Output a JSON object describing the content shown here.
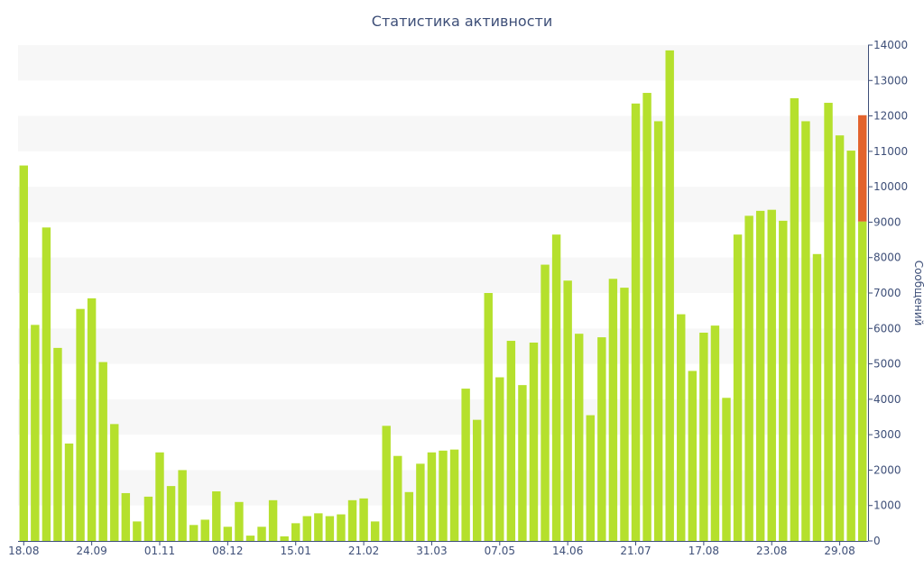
{
  "chart_data": {
    "type": "bar",
    "title": "Статистика активности",
    "ylabel": "Сообщений",
    "xlabel": "",
    "ylim": [
      0,
      14000
    ],
    "yticks": [
      0,
      1000,
      2000,
      3000,
      4000,
      5000,
      6000,
      7000,
      8000,
      9000,
      10000,
      11000,
      12000,
      13000,
      14000
    ],
    "grid": "alternating horizontal bands",
    "x_tick_labels": [
      {
        "label": "18.08",
        "index": 0
      },
      {
        "label": "24.09",
        "index": 6
      },
      {
        "label": "01.11",
        "index": 12
      },
      {
        "label": "08.12",
        "index": 18
      },
      {
        "label": "15.01",
        "index": 24
      },
      {
        "label": "21.02",
        "index": 30
      },
      {
        "label": "31.03",
        "index": 36
      },
      {
        "label": "07.05",
        "index": 42
      },
      {
        "label": "14.06",
        "index": 48
      },
      {
        "label": "21.07",
        "index": 54
      },
      {
        "label": "17.08",
        "index": 60
      },
      {
        "label": "23.08",
        "index": 66
      },
      {
        "label": "29.08",
        "index": 72
      }
    ],
    "series": [
      {
        "color": "#b5e02d",
        "values": [
          10600,
          6100,
          8850,
          5450,
          2750,
          6550,
          6850,
          5050,
          3300,
          1350,
          550,
          1250,
          2500,
          1550,
          2000,
          450,
          600,
          1400,
          400,
          1100,
          150,
          400,
          1150,
          130,
          500,
          700,
          780,
          700,
          750,
          1150,
          1200,
          550,
          3250,
          2400,
          1380,
          2180,
          2500,
          2550,
          2580,
          4300,
          3420,
          7000,
          4620,
          5650,
          4400,
          5600,
          7800,
          8650,
          7350,
          5850,
          3550,
          5750,
          7400,
          7150,
          12350,
          12650,
          11850,
          13850,
          6400,
          4800,
          5880,
          6080,
          4040,
          8650,
          9180,
          9320,
          9350,
          9040,
          12500,
          11850,
          8100,
          12370,
          11450,
          11020,
          9020
        ]
      },
      {
        "color": "#e3632d",
        "values": [
          0,
          0,
          0,
          0,
          0,
          0,
          0,
          0,
          0,
          0,
          0,
          0,
          0,
          0,
          0,
          0,
          0,
          0,
          0,
          0,
          0,
          0,
          0,
          0,
          0,
          0,
          0,
          0,
          0,
          0,
          0,
          0,
          0,
          0,
          0,
          0,
          0,
          0,
          0,
          0,
          0,
          0,
          0,
          0,
          0,
          0,
          0,
          0,
          0,
          0,
          0,
          0,
          0,
          0,
          0,
          0,
          0,
          0,
          0,
          0,
          0,
          0,
          0,
          0,
          0,
          0,
          0,
          0,
          0,
          0,
          0,
          0,
          0,
          0,
          3000
        ]
      }
    ],
    "axis_color": "#3e4f78",
    "band_color": "#f7f7f7"
  }
}
